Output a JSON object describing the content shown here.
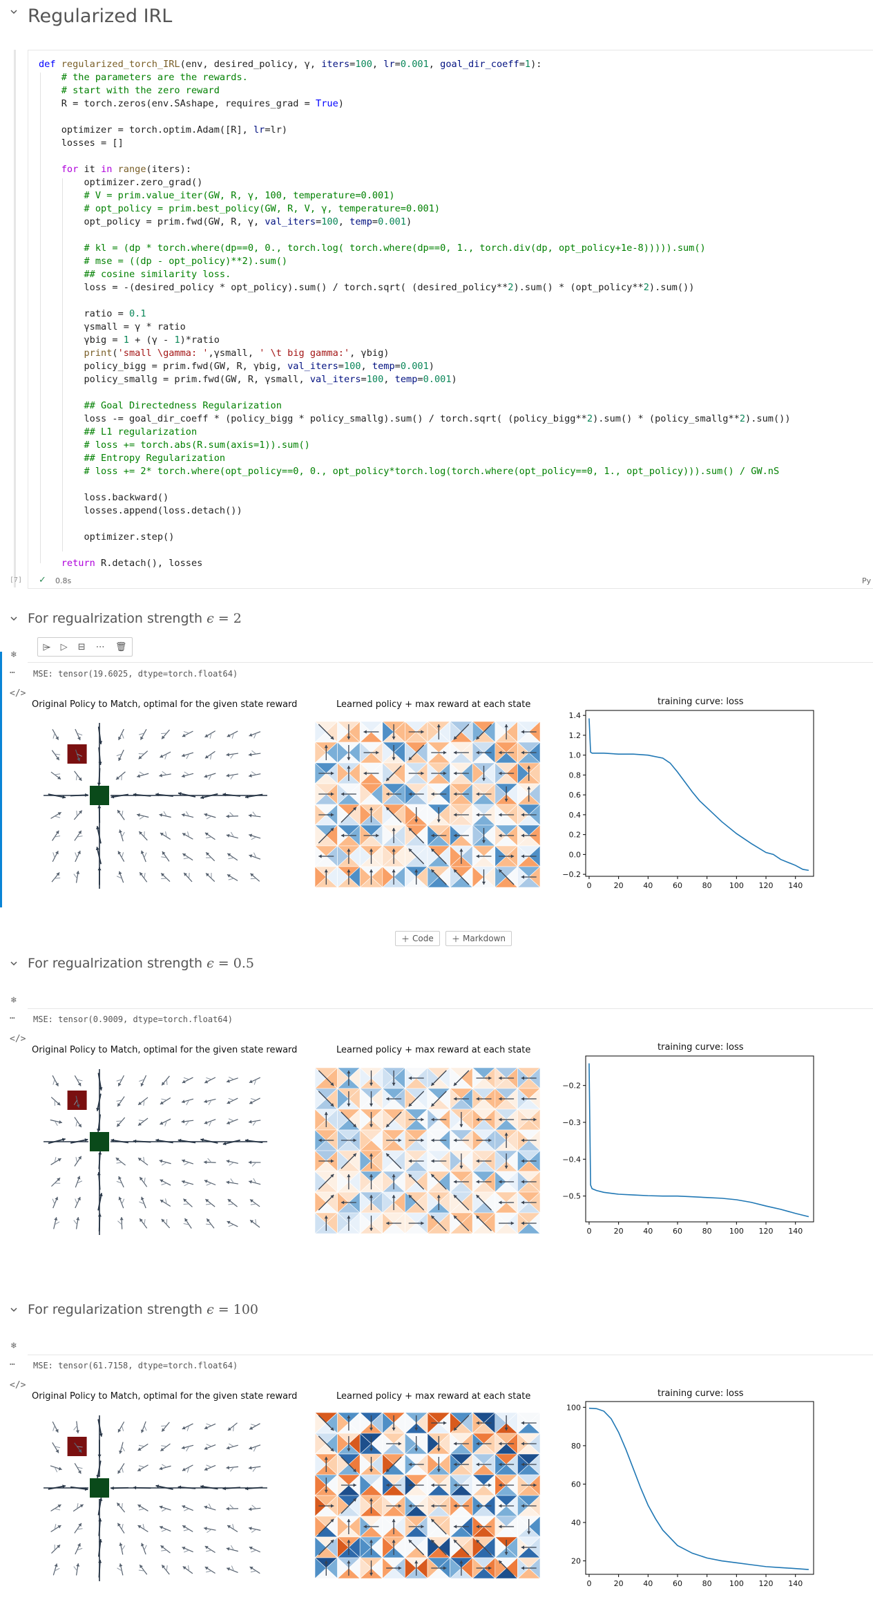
{
  "notebook": {
    "title": "Regularized IRL",
    "code_lines": [
      "def regularized_torch_IRL(env, desired_policy, γ, iters=100, lr=0.001, goal_dir_coeff=1):",
      "    # the parameters are the rewards.",
      "    # start with the zero reward",
      "    R = torch.zeros(env.SAshape, requires_grad = True)",
      "",
      "    optimizer = torch.optim.Adam([R], lr=lr)",
      "    losses = []",
      "",
      "    for it in range(iters):",
      "        optimizer.zero_grad()",
      "        # V = prim.value_iter(GW, R, γ, 100, temperature=0.001)",
      "        # opt_policy = prim.best_policy(GW, R, V, γ, temperature=0.001)",
      "        opt_policy = prim.fwd(GW, R, γ, val_iters=100, temp=0.001)",
      "",
      "        # kl = (dp * torch.where(dp==0, 0., torch.log( torch.where(dp==0, 1., torch.div(dp, opt_policy+1e-8))))).sum()",
      "        # mse = ((dp - opt_policy)**2).sum()",
      "        ## cosine similarity loss.",
      "        loss = -(desired_policy * opt_policy).sum() / torch.sqrt( (desired_policy**2).sum() * (opt_policy**2).sum())",
      "",
      "        ratio = 0.1",
      "        γsmall = γ * ratio",
      "        γbig = 1 + (γ - 1)*ratio",
      "        print('small \\gamma: ',γsmall, ' \\t big gamma:', γbig)",
      "        policy_bigg = prim.fwd(GW, R, γbig, val_iters=100, temp=0.001)",
      "        policy_smallg = prim.fwd(GW, R, γsmall, val_iters=100, temp=0.001)",
      "",
      "        ## Goal Directedness Regularization",
      "        loss -= goal_dir_coeff * (policy_bigg * policy_smallg).sum() / torch.sqrt( (policy_bigg**2).sum() * (policy_smallg**2).sum())",
      "        ## L1 regularization",
      "        # loss += torch.abs(R.sum(axis=1)).sum()",
      "        ## Entropy Regularization",
      "        # loss += 2* torch.where(opt_policy==0, 0., opt_policy*torch.log(torch.where(opt_policy==0, 1., opt_policy))).sum() / GW.nS",
      "",
      "        loss.backward()",
      "        losses.append(loss.detach())",
      "",
      "        optimizer.step()",
      "",
      "    return R.detach(), losses"
    ],
    "exec_count": "[7]",
    "exec_time": "0.8s",
    "language_badge": "Py",
    "toolbar_icons": [
      "run-above-icon",
      "run-below-icon",
      "split-cell-icon",
      "more-icon",
      "delete-icon"
    ],
    "add_code_label": "Code",
    "add_markdown_label": "Markdown"
  },
  "sections": [
    {
      "heading_prefix": "For regualrization strength",
      "epsilon": "2",
      "mse": "MSE:  tensor(19.6025, dtype=torch.float64)",
      "left_title": "Original Policy to Match, optimal for the given state reward",
      "mid_title": "Learned policy + max reward at each state",
      "chart_title": "training curve: loss"
    },
    {
      "heading_prefix": "For regualrization strength",
      "epsilon": "0.5",
      "mse": "MSE:  tensor(0.9009, dtype=torch.float64)",
      "left_title": "Original Policy to Match, optimal for the given state reward",
      "mid_title": "Learned policy + max reward at each state",
      "chart_title": "training curve: loss"
    },
    {
      "heading_prefix": "For regularization strength",
      "epsilon": "100",
      "mse": "MSE:  tensor(61.7158, dtype=torch.float64)",
      "left_title": "Original Policy to Match, optimal for the given state reward",
      "mid_title": "Learned policy + max reward at each state",
      "chart_title": "training curve: loss"
    }
  ],
  "chart_data": [
    {
      "type": "line",
      "title": "training curve: loss",
      "xlabel": "",
      "ylabel": "",
      "xlim": [
        0,
        150
      ],
      "ylim": [
        -0.22,
        1.45
      ],
      "xticks": [
        0,
        20,
        40,
        60,
        80,
        100,
        120,
        140
      ],
      "yticks": [
        -0.2,
        0.0,
        0.2,
        0.4,
        0.6,
        0.8,
        1.0,
        1.2,
        1.4
      ],
      "x": [
        0,
        1,
        2,
        5,
        10,
        20,
        30,
        40,
        50,
        55,
        60,
        65,
        70,
        75,
        80,
        90,
        100,
        110,
        120,
        125,
        130,
        140,
        145,
        149
      ],
      "y": [
        1.37,
        1.03,
        1.02,
        1.02,
        1.02,
        1.01,
        1.01,
        1.0,
        0.97,
        0.92,
        0.83,
        0.73,
        0.63,
        0.54,
        0.47,
        0.33,
        0.21,
        0.11,
        0.02,
        0.0,
        -0.05,
        -0.11,
        -0.15,
        -0.16
      ],
      "grid": false
    },
    {
      "type": "line",
      "title": "training curve: loss",
      "xlabel": "",
      "ylabel": "",
      "xlim": [
        0,
        150
      ],
      "ylim": [
        -0.57,
        -0.12
      ],
      "xticks": [
        0,
        20,
        40,
        60,
        80,
        100,
        120,
        140
      ],
      "yticks": [
        -0.5,
        -0.4,
        -0.3,
        -0.2
      ],
      "x": [
        0,
        1,
        2,
        5,
        10,
        20,
        30,
        40,
        50,
        60,
        70,
        80,
        90,
        100,
        110,
        120,
        130,
        140,
        149
      ],
      "y": [
        -0.14,
        -0.47,
        -0.48,
        -0.485,
        -0.49,
        -0.495,
        -0.497,
        -0.499,
        -0.5,
        -0.5,
        -0.502,
        -0.504,
        -0.506,
        -0.51,
        -0.517,
        -0.527,
        -0.536,
        -0.547,
        -0.556
      ],
      "grid": false
    },
    {
      "type": "line",
      "title": "training curve: loss",
      "xlabel": "",
      "ylabel": "",
      "xlim": [
        0,
        150
      ],
      "ylim": [
        13,
        103
      ],
      "xticks": [
        0,
        20,
        40,
        60,
        80,
        100,
        120,
        140
      ],
      "yticks": [
        20,
        40,
        60,
        80,
        100
      ],
      "x": [
        0,
        5,
        10,
        15,
        20,
        25,
        30,
        35,
        40,
        45,
        50,
        60,
        70,
        80,
        90,
        100,
        110,
        120,
        130,
        140,
        149
      ],
      "y": [
        99.5,
        99.3,
        98,
        94,
        87,
        78,
        68,
        58,
        49,
        42,
        36,
        28,
        24,
        21.5,
        20,
        19,
        18,
        17,
        16.5,
        16,
        15.5
      ],
      "grid": false
    }
  ],
  "colors": {
    "keyword": "#0000ff",
    "control": "#af00db",
    "function": "#795e26",
    "comment": "#008000",
    "number": "#098658",
    "string": "#a31515",
    "line": "#1f77b4",
    "goal": "#0a4a1a",
    "start": "#7a1010",
    "selected_cell_bar": "#0a84d6"
  }
}
